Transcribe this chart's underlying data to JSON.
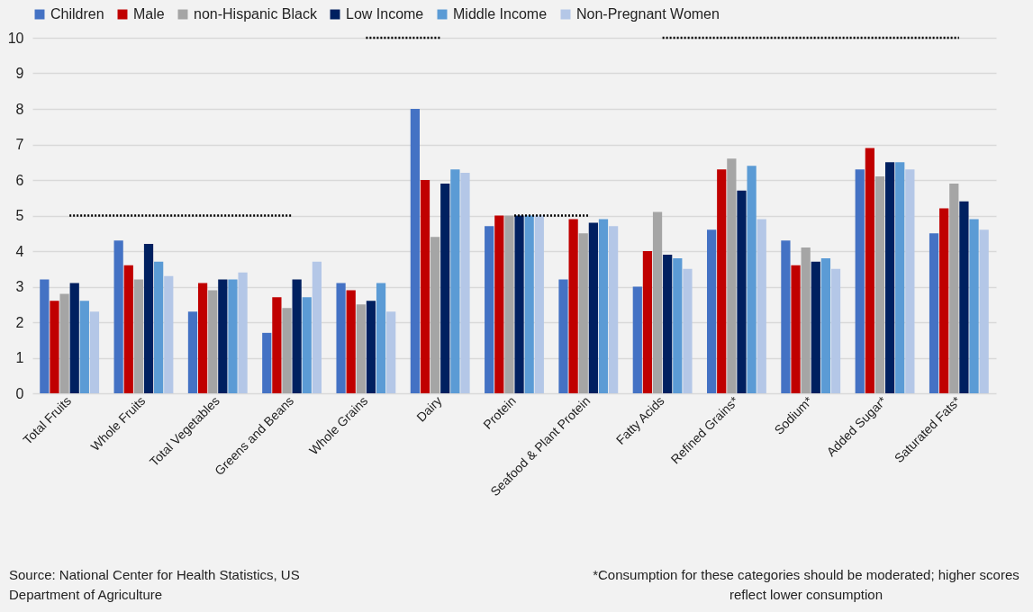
{
  "chart_data": {
    "type": "bar",
    "categories": [
      "Total Fruits",
      "Whole Fruits",
      "Total Vegetables",
      "Greens and Beans",
      "Whole Grains",
      "Dairy",
      "Protein",
      "Seafood & Plant Protein",
      "Fatty Acids",
      "Refined Grains*",
      "Sodium*",
      "Added Sugar*",
      "Saturated Fats*"
    ],
    "series": [
      {
        "name": "Children",
        "color": "#4472c4",
        "values": [
          3.2,
          4.3,
          2.3,
          1.7,
          3.1,
          8.0,
          4.7,
          3.2,
          3.0,
          4.6,
          4.3,
          6.3,
          4.5
        ]
      },
      {
        "name": "Male",
        "color": "#c00000",
        "values": [
          2.6,
          3.6,
          3.1,
          2.7,
          2.9,
          6.0,
          5.0,
          4.9,
          4.0,
          6.3,
          3.6,
          6.9,
          5.2
        ]
      },
      {
        "name": "non-Hispanic Black",
        "color": "#a5a5a5",
        "values": [
          2.8,
          3.2,
          2.9,
          2.4,
          2.5,
          4.4,
          5.0,
          4.5,
          5.1,
          6.6,
          4.1,
          6.1,
          5.9
        ]
      },
      {
        "name": "Low Income",
        "color": "#002060",
        "values": [
          3.1,
          4.2,
          3.2,
          3.2,
          2.6,
          5.9,
          5.0,
          4.8,
          3.9,
          5.7,
          3.7,
          6.5,
          5.4
        ]
      },
      {
        "name": "Middle Income",
        "color": "#5b9bd5",
        "values": [
          2.6,
          3.7,
          3.2,
          2.7,
          3.1,
          6.3,
          5.0,
          4.9,
          3.8,
          6.4,
          3.8,
          6.5,
          4.9
        ]
      },
      {
        "name": "Non-Pregnant Women",
        "color": "#b4c7e7",
        "values": [
          2.3,
          3.3,
          3.4,
          3.7,
          2.3,
          6.2,
          5.0,
          4.7,
          3.5,
          4.9,
          3.5,
          6.3,
          4.6
        ]
      },
      {
        "type": "line",
        "line_style": "dotted",
        "color": "#000000",
        "values": [
          5,
          5,
          5,
          5,
          null,
          null,
          null,
          null,
          null,
          null,
          null,
          null,
          null
        ]
      },
      {
        "type": "line",
        "line_style": "dotted",
        "color": "#000000",
        "values": [
          null,
          null,
          null,
          null,
          10,
          10,
          null,
          null,
          null,
          null,
          null,
          null,
          null
        ]
      },
      {
        "type": "line",
        "line_style": "dotted",
        "color": "#000000",
        "values": [
          null,
          null,
          null,
          null,
          null,
          null,
          5,
          5,
          null,
          null,
          null,
          null,
          null
        ]
      },
      {
        "type": "line",
        "line_style": "dotted",
        "color": "#000000",
        "values": [
          null,
          null,
          null,
          null,
          null,
          null,
          null,
          null,
          10,
          10,
          10,
          10,
          10
        ]
      }
    ],
    "ylim": [
      0,
      10
    ],
    "yticks": [
      0,
      1,
      2,
      3,
      4,
      5,
      6,
      7,
      8,
      9,
      10
    ],
    "grid": "y",
    "legend": "top",
    "annotations": [
      "Source: National Center for Health Statistics, US Department of Agriculture",
      "*Consumption for these categories should be moderated; higher scores reflect lower consumption"
    ]
  }
}
